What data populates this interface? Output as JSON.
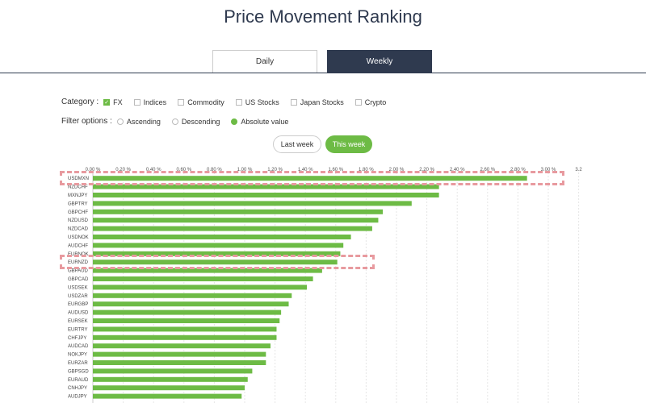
{
  "page": {
    "title": "Price Movement Ranking"
  },
  "tabs": [
    {
      "label": "Daily",
      "active": false
    },
    {
      "label": "Weekly",
      "active": true
    }
  ],
  "filters": {
    "category_label": "Category :",
    "categories": [
      {
        "label": "FX",
        "checked": true
      },
      {
        "label": "Indices",
        "checked": false
      },
      {
        "label": "Commodity",
        "checked": false
      },
      {
        "label": "US Stocks",
        "checked": false
      },
      {
        "label": "Japan Stocks",
        "checked": false
      },
      {
        "label": "Crypto",
        "checked": false
      }
    ],
    "options_label": "Filter options :",
    "options": [
      {
        "label": "Ascending",
        "selected": false
      },
      {
        "label": "Descending",
        "selected": false
      },
      {
        "label": "Absolute value",
        "selected": true
      }
    ]
  },
  "period": {
    "last_week": "Last week",
    "this_week": "This week"
  },
  "colors": {
    "bar": "#6dbb45",
    "accent": "#2f3a4f",
    "highlight": "#e89a9f"
  },
  "chart_data": {
    "type": "bar",
    "orientation": "horizontal",
    "xlim": [
      0,
      3.2
    ],
    "ticks": [
      "0.00 %",
      "0.20 %",
      "0.40 %",
      "0.60 %",
      "0.80 %",
      "1.00 %",
      "1.20 %",
      "1.40 %",
      "1.60 %",
      "1.80 %",
      "2.00 %",
      "2.20 %",
      "2.40 %",
      "2.60 %",
      "2.80 %",
      "3.00 %",
      "3.2"
    ],
    "tick_values": [
      0,
      0.2,
      0.4,
      0.6,
      0.8,
      1.0,
      1.2,
      1.4,
      1.6,
      1.8,
      2.0,
      2.2,
      2.4,
      2.6,
      2.8,
      3.0,
      3.2
    ],
    "categories": [
      "USDMXN",
      "NZDCHF",
      "MXNJPY",
      "GBPTRY",
      "GBPCHF",
      "NZDUSD",
      "NZDCAD",
      "USDNOK",
      "AUDCHF",
      "EURNOK",
      "EURNZD",
      "GBPAUD",
      "GBPCAD",
      "USDSEK",
      "USDZAR",
      "EURGBP",
      "AUDUSD",
      "EURSEK",
      "EURTRY",
      "CHFJPY",
      "AUDCAD",
      "NOKJPY",
      "EURZAR",
      "GBPSGD",
      "EURAUD",
      "CNHJPY",
      "AUDJPY"
    ],
    "values": [
      2.86,
      2.28,
      2.28,
      2.1,
      1.91,
      1.88,
      1.84,
      1.7,
      1.65,
      1.63,
      1.61,
      1.51,
      1.45,
      1.41,
      1.31,
      1.29,
      1.24,
      1.23,
      1.21,
      1.21,
      1.17,
      1.14,
      1.14,
      1.05,
      1.02,
      1.0,
      0.98
    ],
    "highlighted": [
      "USDMXN",
      "EURNZD"
    ]
  }
}
